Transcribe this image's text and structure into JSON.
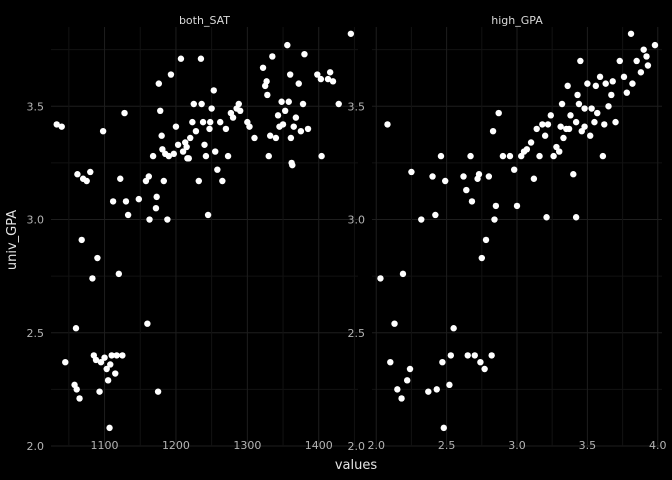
{
  "chart_data": {
    "type": "scatter",
    "ylabel": "univ_GPA",
    "xlabel": "values",
    "ylim": [
      2.0,
      3.85
    ],
    "yticks": [
      "2.0",
      "2.5",
      "3.0",
      "3.5"
    ],
    "background": "#000000",
    "grid_color": "#1e1e1e",
    "grid_minor_color": "#121212",
    "point_color": "#ffffff",
    "grid": true,
    "panels": [
      {
        "title": "both_SAT",
        "xlim": [
          1025,
          1455
        ],
        "xticks": [
          "1100",
          "1200",
          "1300",
          "1400"
        ],
        "points": [
          [
            1033,
            3.42
          ],
          [
            1040,
            3.41
          ],
          [
            1045,
            2.37
          ],
          [
            1058,
            2.27
          ],
          [
            1060,
            2.52
          ],
          [
            1061,
            2.25
          ],
          [
            1062,
            3.2
          ],
          [
            1065,
            2.21
          ],
          [
            1068,
            2.91
          ],
          [
            1070,
            3.18
          ],
          [
            1075,
            3.17
          ],
          [
            1080,
            3.21
          ],
          [
            1083,
            2.74
          ],
          [
            1085,
            2.4
          ],
          [
            1088,
            2.38
          ],
          [
            1090,
            2.83
          ],
          [
            1093,
            2.24
          ],
          [
            1095,
            2.37
          ],
          [
            1098,
            3.39
          ],
          [
            1100,
            2.39
          ],
          [
            1103,
            2.34
          ],
          [
            1105,
            2.29
          ],
          [
            1107,
            2.08
          ],
          [
            1108,
            2.36
          ],
          [
            1110,
            2.4
          ],
          [
            1112,
            3.08
          ],
          [
            1115,
            2.32
          ],
          [
            1117,
            2.4
          ],
          [
            1120,
            2.76
          ],
          [
            1122,
            3.18
          ],
          [
            1125,
            2.4
          ],
          [
            1128,
            3.47
          ],
          [
            1130,
            3.08
          ],
          [
            1133,
            3.02
          ],
          [
            1148,
            3.09
          ],
          [
            1158,
            3.17
          ],
          [
            1160,
            2.54
          ],
          [
            1162,
            3.19
          ],
          [
            1163,
            3.0
          ],
          [
            1168,
            3.28
          ],
          [
            1172,
            3.05
          ],
          [
            1173,
            3.1
          ],
          [
            1175,
            2.24
          ],
          [
            1176,
            3.6
          ],
          [
            1178,
            3.48
          ],
          [
            1180,
            3.37
          ],
          [
            1181,
            3.31
          ],
          [
            1183,
            3.17
          ],
          [
            1185,
            3.29
          ],
          [
            1188,
            3.0
          ],
          [
            1190,
            3.28
          ],
          [
            1193,
            3.64
          ],
          [
            1197,
            3.29
          ],
          [
            1200,
            3.41
          ],
          [
            1203,
            3.33
          ],
          [
            1207,
            3.71
          ],
          [
            1210,
            3.3
          ],
          [
            1213,
            3.34
          ],
          [
            1215,
            3.32
          ],
          [
            1216,
            3.27
          ],
          [
            1218,
            3.27
          ],
          [
            1220,
            3.36
          ],
          [
            1223,
            3.43
          ],
          [
            1225,
            3.51
          ],
          [
            1228,
            3.39
          ],
          [
            1232,
            3.17
          ],
          [
            1235,
            3.71
          ],
          [
            1236,
            3.51
          ],
          [
            1238,
            3.43
          ],
          [
            1240,
            3.33
          ],
          [
            1242,
            3.28
          ],
          [
            1245,
            3.02
          ],
          [
            1247,
            3.4
          ],
          [
            1248,
            3.43
          ],
          [
            1250,
            3.49
          ],
          [
            1253,
            3.57
          ],
          [
            1255,
            3.3
          ],
          [
            1258,
            3.22
          ],
          [
            1262,
            3.43
          ],
          [
            1265,
            3.17
          ],
          [
            1270,
            3.4
          ],
          [
            1273,
            3.28
          ],
          [
            1277,
            3.47
          ],
          [
            1280,
            3.45
          ],
          [
            1285,
            3.49
          ],
          [
            1288,
            3.51
          ],
          [
            1290,
            3.48
          ],
          [
            1300,
            3.43
          ],
          [
            1303,
            3.41
          ],
          [
            1310,
            3.36
          ],
          [
            1322,
            3.67
          ],
          [
            1325,
            3.59
          ],
          [
            1327,
            3.61
          ],
          [
            1328,
            3.55
          ],
          [
            1330,
            3.28
          ],
          [
            1332,
            3.37
          ],
          [
            1335,
            3.72
          ],
          [
            1340,
            3.36
          ],
          [
            1343,
            3.46
          ],
          [
            1345,
            3.41
          ],
          [
            1348,
            3.52
          ],
          [
            1350,
            3.42
          ],
          [
            1353,
            3.48
          ],
          [
            1356,
            3.77
          ],
          [
            1358,
            3.52
          ],
          [
            1360,
            3.64
          ],
          [
            1361,
            3.36
          ],
          [
            1362,
            3.25
          ],
          [
            1363,
            3.24
          ],
          [
            1365,
            3.41
          ],
          [
            1368,
            3.45
          ],
          [
            1372,
            3.6
          ],
          [
            1375,
            3.39
          ],
          [
            1378,
            3.51
          ],
          [
            1380,
            3.73
          ],
          [
            1385,
            3.4
          ],
          [
            1398,
            3.64
          ],
          [
            1403,
            3.62
          ],
          [
            1404,
            3.28
          ],
          [
            1413,
            3.62
          ],
          [
            1416,
            3.65
          ],
          [
            1420,
            3.61
          ],
          [
            1428,
            3.51
          ],
          [
            1445,
            3.82
          ]
        ]
      },
      {
        "title": "high_GPA",
        "xlim": [
          1.97,
          4.03
        ],
        "xticks": [
          "2.0",
          "2.5",
          "3.0",
          "3.5",
          "4.0"
        ],
        "points": [
          [
            2.03,
            2.74
          ],
          [
            2.08,
            3.42
          ],
          [
            2.1,
            2.37
          ],
          [
            2.13,
            2.54
          ],
          [
            2.15,
            2.25
          ],
          [
            2.18,
            2.21
          ],
          [
            2.19,
            2.76
          ],
          [
            2.22,
            2.29
          ],
          [
            2.24,
            2.34
          ],
          [
            2.25,
            3.21
          ],
          [
            2.32,
            3.0
          ],
          [
            2.37,
            2.24
          ],
          [
            2.4,
            3.19
          ],
          [
            2.42,
            3.02
          ],
          [
            2.43,
            2.25
          ],
          [
            2.46,
            3.28
          ],
          [
            2.47,
            2.37
          ],
          [
            2.48,
            2.08
          ],
          [
            2.49,
            3.17
          ],
          [
            2.52,
            2.27
          ],
          [
            2.53,
            2.4
          ],
          [
            2.55,
            2.52
          ],
          [
            2.62,
            3.19
          ],
          [
            2.64,
            3.13
          ],
          [
            2.65,
            2.4
          ],
          [
            2.67,
            3.28
          ],
          [
            2.68,
            3.08
          ],
          [
            2.7,
            2.4
          ],
          [
            2.72,
            3.18
          ],
          [
            2.73,
            3.2
          ],
          [
            2.74,
            2.37
          ],
          [
            2.75,
            2.83
          ],
          [
            2.77,
            2.34
          ],
          [
            2.78,
            2.91
          ],
          [
            2.8,
            3.19
          ],
          [
            2.82,
            2.4
          ],
          [
            2.83,
            3.39
          ],
          [
            2.84,
            3.0
          ],
          [
            2.85,
            3.06
          ],
          [
            2.87,
            3.47
          ],
          [
            2.9,
            3.28
          ],
          [
            2.95,
            3.28
          ],
          [
            2.98,
            3.22
          ],
          [
            3.0,
            3.06
          ],
          [
            3.03,
            3.28
          ],
          [
            3.05,
            3.3
          ],
          [
            3.07,
            3.31
          ],
          [
            3.1,
            3.34
          ],
          [
            3.12,
            3.18
          ],
          [
            3.14,
            3.4
          ],
          [
            3.16,
            3.28
          ],
          [
            3.18,
            3.42
          ],
          [
            3.2,
            3.37
          ],
          [
            3.21,
            3.01
          ],
          [
            3.22,
            3.42
          ],
          [
            3.24,
            3.46
          ],
          [
            3.26,
            3.28
          ],
          [
            3.28,
            3.32
          ],
          [
            3.3,
            3.3
          ],
          [
            3.31,
            3.41
          ],
          [
            3.32,
            3.51
          ],
          [
            3.33,
            3.36
          ],
          [
            3.35,
            3.4
          ],
          [
            3.36,
            3.59
          ],
          [
            3.37,
            3.4
          ],
          [
            3.38,
            3.46
          ],
          [
            3.4,
            3.2
          ],
          [
            3.42,
            3.43
          ],
          [
            3.42,
            3.01
          ],
          [
            3.43,
            3.55
          ],
          [
            3.44,
            3.51
          ],
          [
            3.45,
            3.7
          ],
          [
            3.46,
            3.39
          ],
          [
            3.48,
            3.41
          ],
          [
            3.48,
            3.49
          ],
          [
            3.5,
            3.6
          ],
          [
            3.52,
            3.37
          ],
          [
            3.53,
            3.49
          ],
          [
            3.55,
            3.43
          ],
          [
            3.56,
            3.59
          ],
          [
            3.57,
            3.47
          ],
          [
            3.59,
            3.63
          ],
          [
            3.61,
            3.28
          ],
          [
            3.62,
            3.42
          ],
          [
            3.63,
            3.6
          ],
          [
            3.65,
            3.5
          ],
          [
            3.67,
            3.55
          ],
          [
            3.68,
            3.61
          ],
          [
            3.7,
            3.43
          ],
          [
            3.73,
            3.7
          ],
          [
            3.76,
            3.63
          ],
          [
            3.78,
            3.56
          ],
          [
            3.81,
            3.82
          ],
          [
            3.82,
            3.6
          ],
          [
            3.85,
            3.7
          ],
          [
            3.88,
            3.65
          ],
          [
            3.9,
            3.75
          ],
          [
            3.92,
            3.72
          ],
          [
            3.93,
            3.68
          ],
          [
            3.98,
            3.77
          ]
        ]
      }
    ]
  }
}
